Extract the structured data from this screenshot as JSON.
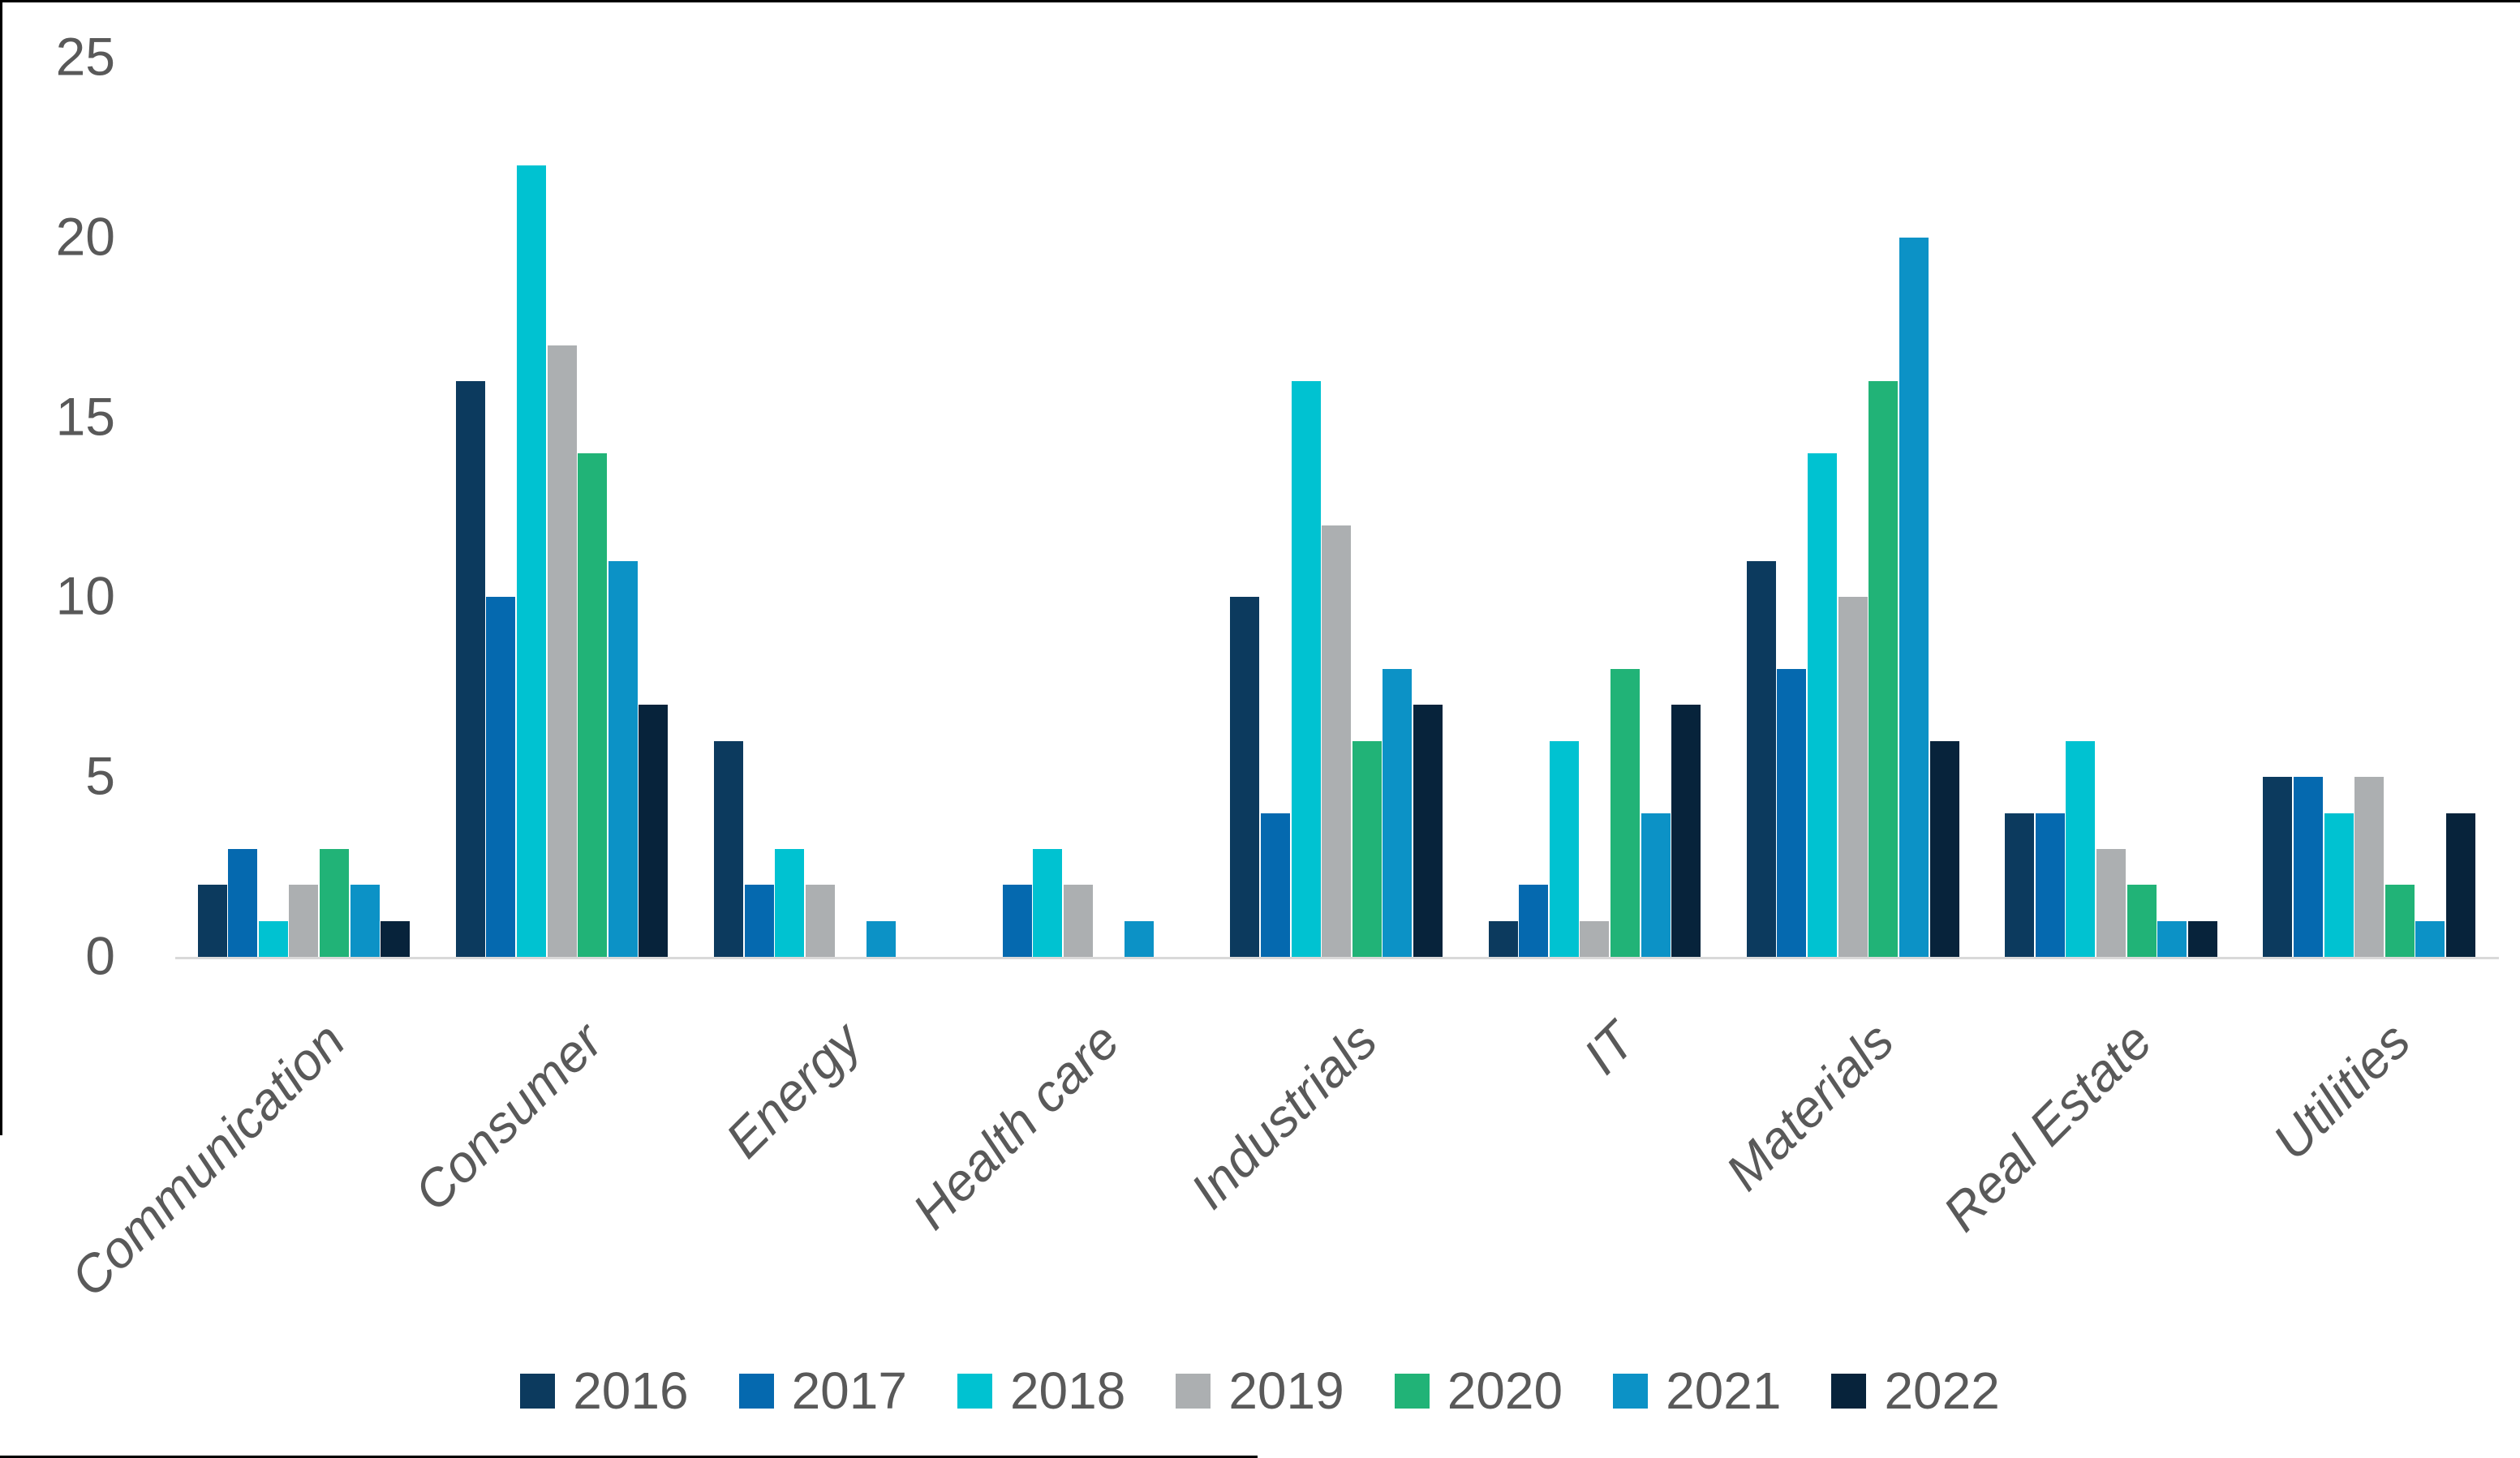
{
  "chart_data": {
    "type": "bar",
    "title": "",
    "xlabel": "",
    "ylabel": "",
    "categories": [
      "Communication",
      "Consumer",
      "Energy",
      "Health care",
      "Industrials",
      "IT",
      "Materials",
      "Real Estate",
      "Utilities"
    ],
    "series": [
      {
        "name": "2016",
        "color": "#0C3A5E",
        "values": [
          2,
          16,
          6,
          0,
          10,
          1,
          11,
          4,
          5
        ]
      },
      {
        "name": "2017",
        "color": "#0569AF",
        "values": [
          3,
          10,
          2,
          2,
          4,
          2,
          8,
          4,
          5
        ]
      },
      {
        "name": "2018",
        "color": "#00C2D1",
        "values": [
          1,
          22,
          3,
          3,
          16,
          6,
          14,
          6,
          4
        ]
      },
      {
        "name": "2019",
        "color": "#ACAFB1",
        "values": [
          2,
          17,
          2,
          2,
          12,
          1,
          10,
          3,
          5
        ]
      },
      {
        "name": "2020",
        "color": "#21B377",
        "values": [
          3,
          14,
          0,
          0,
          6,
          8,
          16,
          2,
          2
        ]
      },
      {
        "name": "2021",
        "color": "#0C92C6",
        "values": [
          2,
          11,
          1,
          1,
          8,
          4,
          20,
          1,
          1
        ]
      },
      {
        "name": "2022",
        "color": "#07233B",
        "values": [
          1,
          7,
          0,
          0,
          7,
          7,
          6,
          1,
          4
        ]
      }
    ],
    "ylim": [
      0,
      25
    ],
    "yticks": [
      0,
      5,
      10,
      15,
      20,
      25
    ],
    "grid": false,
    "legend_position": "bottom",
    "axis_text_color": "#595959",
    "axis_line_color": "#D9D9D9"
  }
}
